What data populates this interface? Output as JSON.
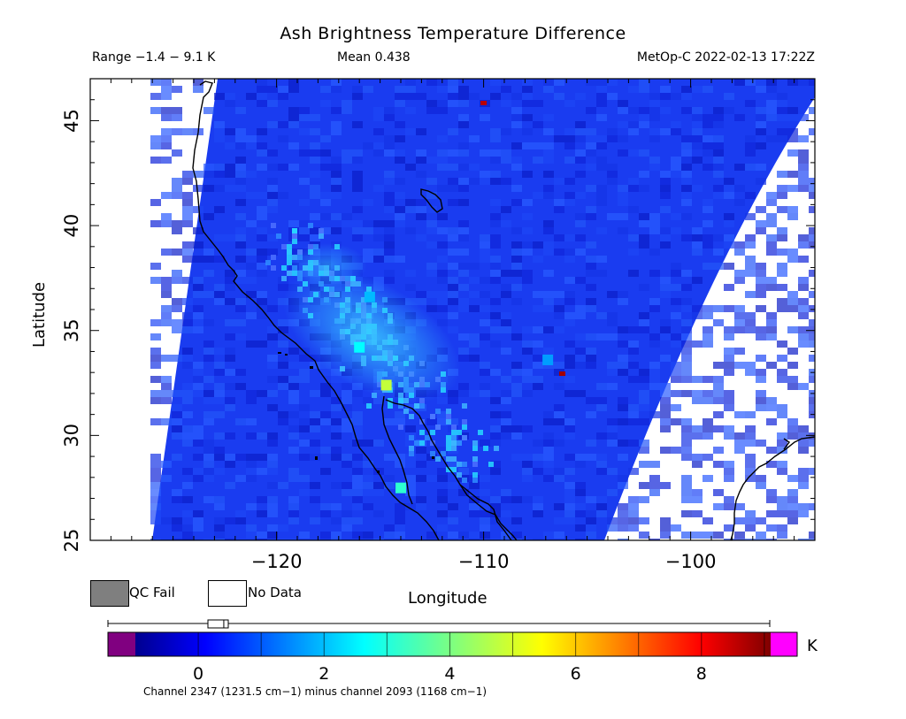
{
  "title": "Ash Brightness Temperature Difference",
  "stats": {
    "range": "Range −1.4 − 9.1 K",
    "mean": "Mean 0.438",
    "satellite_time": "MetOp-C 2022-02-13 17:22Z"
  },
  "axes": {
    "x_label": "Longitude",
    "y_label": "Latitude",
    "x_range": [
      -129,
      -94
    ],
    "y_range": [
      25,
      47
    ],
    "x_ticks": [
      -120,
      -110,
      -100
    ],
    "y_ticks": [
      25,
      30,
      35,
      40,
      45
    ]
  },
  "legend": {
    "qc_fail": "QC Fail",
    "no_data": "No Data",
    "qc_fail_color": "#7f7f7f",
    "no_data_color": "#ffffff"
  },
  "colorbar": {
    "unit": "K",
    "ticks": [
      0,
      2,
      4,
      6,
      8
    ],
    "range": [
      -1.4,
      9.1
    ],
    "mean": 0.438,
    "under_color": "#800080",
    "over_color": "#ff00ff",
    "caption": "Channel 2347 (1231.5 cm−1) minus channel 2093 (1168 cm−1)"
  },
  "hotspots": [
    {
      "lon": -114.7,
      "lat": 32.4,
      "value": 4.8
    },
    {
      "lon": -116.0,
      "lat": 34.2,
      "value": 2.6
    },
    {
      "lon": -114.0,
      "lat": 27.5,
      "value": 3.1
    },
    {
      "lon": -115.5,
      "lat": 36.6,
      "value": 1.9
    },
    {
      "lon": -110.0,
      "lat": 45.8,
      "value": 8.6
    },
    {
      "lon": -106.2,
      "lat": 32.9,
      "value": 8.8
    },
    {
      "lon": -106.9,
      "lat": 33.6,
      "value": 1.6
    }
  ]
}
